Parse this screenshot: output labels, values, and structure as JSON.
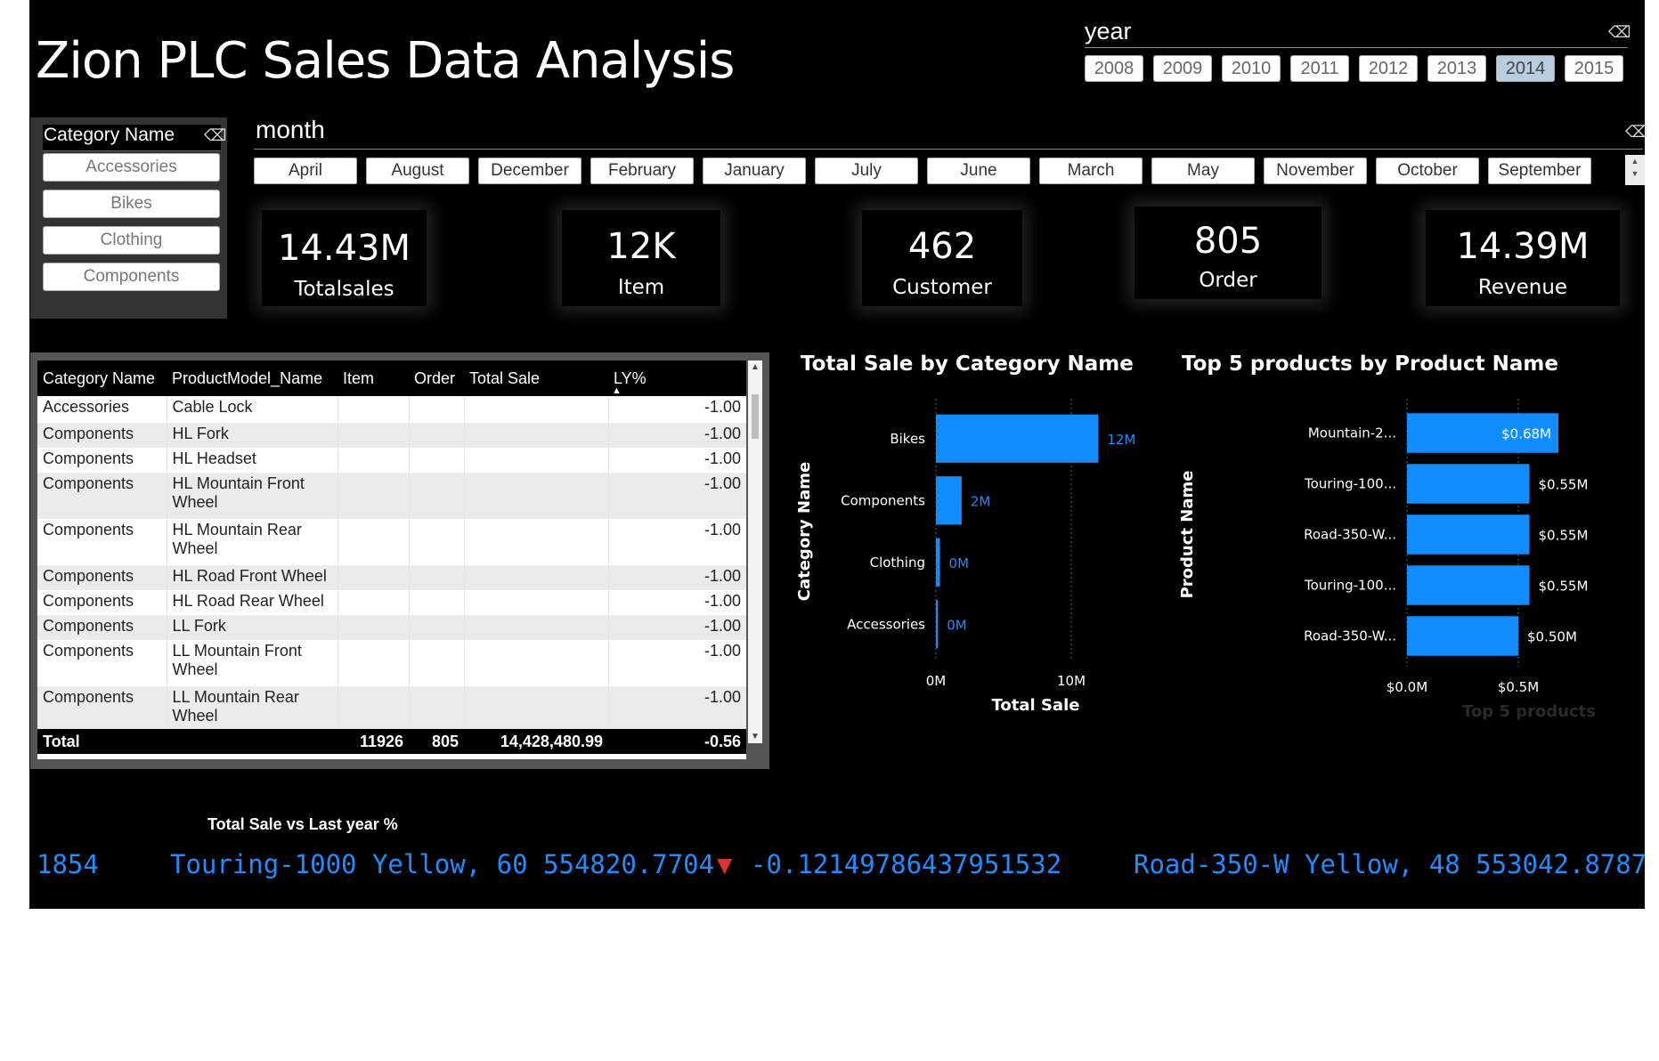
{
  "title": "Zion PLC Sales Data Analysis",
  "year_slicer": {
    "header": "year",
    "items": [
      "2008",
      "2009",
      "2010",
      "2011",
      "2012",
      "2013",
      "2014",
      "2015"
    ],
    "selected": "2014"
  },
  "category_slicer": {
    "header": "Category Name",
    "items": [
      "Accessories",
      "Bikes",
      "Clothing",
      "Components"
    ]
  },
  "month_slicer": {
    "header": "month",
    "items": [
      "April",
      "August",
      "December",
      "February",
      "January",
      "July",
      "June",
      "March",
      "May",
      "November",
      "October",
      "September"
    ]
  },
  "kpis": [
    {
      "value": "14.43M",
      "label": "Totalsales"
    },
    {
      "value": "12K",
      "label": "Item"
    },
    {
      "value": "462",
      "label": "Customer"
    },
    {
      "value": "805",
      "label": "Order"
    },
    {
      "value": "14.39M",
      "label": "Revenue"
    }
  ],
  "table": {
    "columns": [
      "Category Name",
      "ProductModel_Name",
      "Item",
      "Order",
      "Total Sale",
      "LY%"
    ],
    "rows": [
      [
        "Accessories",
        "Cable Lock",
        "",
        "",
        "",
        "-1.00"
      ],
      [
        "Components",
        "HL Fork",
        "",
        "",
        "",
        "-1.00"
      ],
      [
        "Components",
        "HL Headset",
        "",
        "",
        "",
        "-1.00"
      ],
      [
        "Components",
        "HL Mountain Front Wheel",
        "",
        "",
        "",
        "-1.00"
      ],
      [
        "Components",
        "HL Mountain Rear Wheel",
        "",
        "",
        "",
        "-1.00"
      ],
      [
        "Components",
        "HL Road Front Wheel",
        "",
        "",
        "",
        "-1.00"
      ],
      [
        "Components",
        "HL Road Rear Wheel",
        "",
        "",
        "",
        "-1.00"
      ],
      [
        "Components",
        "LL Fork",
        "",
        "",
        "",
        "-1.00"
      ],
      [
        "Components",
        "LL Mountain Front Wheel",
        "",
        "",
        "",
        "-1.00"
      ],
      [
        "Components",
        "LL Mountain Rear Wheel",
        "",
        "",
        "",
        "-1.00"
      ]
    ],
    "total": [
      "Total",
      "",
      "11926",
      "805",
      "14,428,480.99",
      "-0.56"
    ]
  },
  "chart_data": [
    {
      "type": "bar",
      "orientation": "horizontal",
      "title": "Total Sale by Category Name",
      "xlabel": "Total Sale",
      "ylabel": "Category Name",
      "categories": [
        "Bikes",
        "Components",
        "Clothing",
        "Accessories"
      ],
      "values": [
        12.0,
        1.9,
        0.3,
        0.15
      ],
      "data_labels": [
        "12M",
        "2M",
        "0M",
        "0M"
      ],
      "xlim": [
        0,
        12.5
      ],
      "x_ticks": [
        0,
        10
      ],
      "x_tick_labels": [
        "0M",
        "10M"
      ],
      "unit": "M",
      "color": "#118dff",
      "grid": true
    },
    {
      "type": "bar",
      "orientation": "horizontal",
      "title": "Top 5 products by Product Name",
      "xlabel": "Top 5 products",
      "ylabel": "Product Name",
      "categories": [
        "Mountain-2...",
        "Touring-100...",
        "Road-350-W...",
        "Touring-100...",
        "Road-350-W..."
      ],
      "values": [
        0.68,
        0.55,
        0.55,
        0.55,
        0.5
      ],
      "data_labels": [
        "$0.68M",
        "$0.55M",
        "$0.55M",
        "$0.55M",
        "$0.50M"
      ],
      "xlim": [
        0,
        0.72
      ],
      "x_ticks": [
        0,
        0.5
      ],
      "x_tick_labels": [
        "$0.0M",
        "$0.5M"
      ],
      "unit": "M",
      "color": "#118dff",
      "grid": true
    }
  ],
  "ticker": {
    "title": "Total Sale vs Last year %",
    "items": [
      {
        "text": "1854"
      },
      {
        "text": "Touring-1000 Yellow, 60 554820.7704",
        "arrow": "▼",
        "delta": "-0.12149786437951532"
      },
      {
        "text": "Road-350-W Yellow, 48 553042.8787"
      }
    ]
  }
}
